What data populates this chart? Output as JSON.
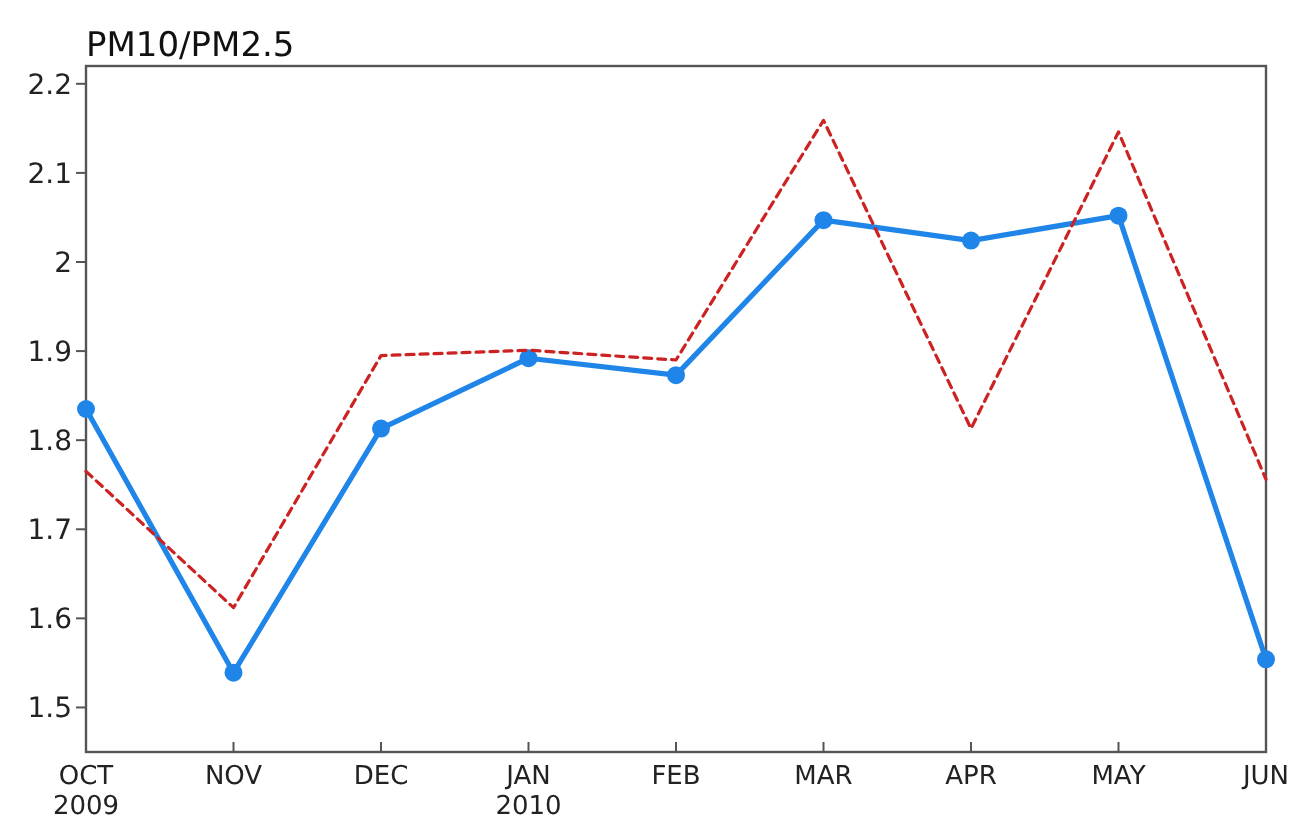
{
  "chart_data": {
    "type": "line",
    "title": "PM10/PM2.5",
    "categories": [
      "OCT\n2009",
      "NOV",
      "DEC",
      "JAN\n2010",
      "FEB",
      "MAR",
      "APR",
      "MAY",
      "JUN"
    ],
    "series": [
      {
        "color": "#1f85e8",
        "marker": "circle",
        "line_style": "solid",
        "values": [
          1.835,
          1.539,
          1.813,
          1.892,
          1.873,
          2.047,
          2.024,
          2.052,
          1.554
        ]
      },
      {
        "color": "#cc2222",
        "marker": "none",
        "line_style": "dashed",
        "values": [
          1.765,
          1.612,
          1.895,
          1.901,
          1.89,
          2.159,
          1.813,
          2.146,
          1.756
        ]
      }
    ],
    "ylim": [
      1.45,
      2.22
    ],
    "yticks": [
      1.5,
      1.6,
      1.7,
      1.8,
      1.9,
      {
        "value": 2,
        "label": "2"
      },
      2.1,
      2.2
    ]
  }
}
